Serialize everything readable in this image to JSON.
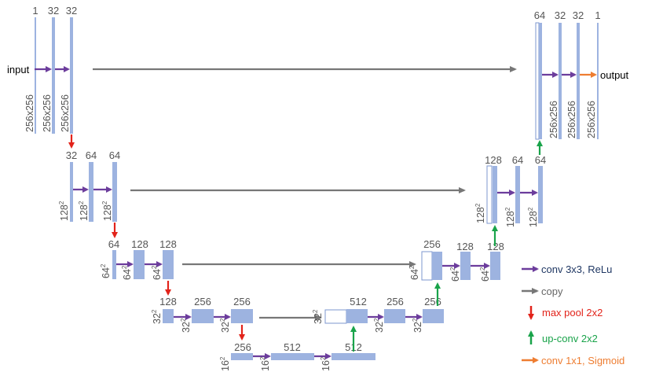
{
  "colors": {
    "block": "#9db3e0",
    "block_stroke": "#7e97cf",
    "conv": "#6c3d9c",
    "copy": "#777777",
    "maxpool": "#e2231a",
    "upconv": "#19a34a",
    "final": "#ee7d31",
    "label": "#555555",
    "legend_conv_text": "#1f3763"
  },
  "io": {
    "input_label": "input",
    "output_label": "output"
  },
  "levels": {
    "l1": {
      "channels": [
        "1",
        "32",
        "32"
      ],
      "size": "256x256"
    },
    "l2": {
      "channels": [
        "32",
        "64",
        "64"
      ],
      "size": "128",
      "size_exp": "2"
    },
    "l3": {
      "channels": [
        "64",
        "128",
        "128"
      ],
      "size": "64",
      "size_exp": "2"
    },
    "l4": {
      "channels": [
        "128",
        "256",
        "256"
      ],
      "size": "32",
      "size_exp": "2"
    },
    "l5": {
      "channels": [
        "256",
        "512",
        "512"
      ],
      "size": "16",
      "size_exp": "2"
    },
    "d4": {
      "channels": [
        "512",
        "256",
        "256"
      ],
      "size": "32",
      "size_exp": "2"
    },
    "d3": {
      "channels": [
        "256",
        "128",
        "128"
      ],
      "size": "64",
      "size_exp": "2"
    },
    "d2": {
      "channels": [
        "128",
        "64",
        "64"
      ],
      "size": "128",
      "size_exp": "2"
    },
    "d1": {
      "channels": [
        "64",
        "32",
        "32",
        "1"
      ],
      "size": "256x256"
    }
  },
  "legend": {
    "conv": {
      "label": "conv 3x3, ReLu",
      "icon": "arrow-right-icon"
    },
    "copy": {
      "label": "copy",
      "icon": "arrow-right-icon"
    },
    "maxpool": {
      "label": "max pool 2x2",
      "icon": "arrow-down-icon"
    },
    "upconv": {
      "label": "up-conv 2x2",
      "icon": "arrow-up-icon"
    },
    "final": {
      "label": "conv 1x1, Sigmoid",
      "icon": "arrow-right-icon"
    }
  }
}
